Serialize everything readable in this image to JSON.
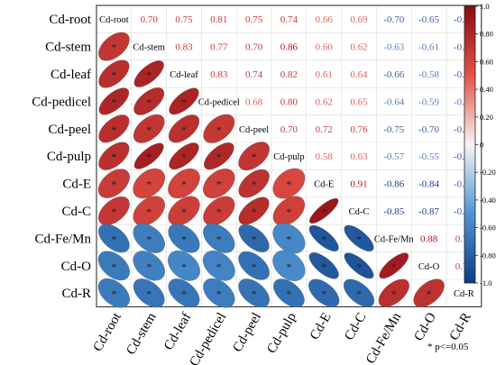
{
  "chart_data": {
    "type": "heatmap",
    "subtype": "correlation-matrix",
    "variables": [
      "Cd-root",
      "Cd-stem",
      "Cd-leaf",
      "Cd-pedicel",
      "Cd-peel",
      "Cd-pulp",
      "Cd-E",
      "Cd-C",
      "Cd-Fe/Mn",
      "Cd-O",
      "Cd-R"
    ],
    "matrix": [
      [
        1,
        0.7,
        0.75,
        0.81,
        0.75,
        0.74,
        0.66,
        0.69,
        -0.7,
        -0.65,
        -0.65
      ],
      [
        0.7,
        1,
        0.83,
        0.77,
        0.7,
        0.86,
        0.6,
        0.62,
        -0.63,
        -0.61,
        -0.68
      ],
      [
        0.75,
        0.83,
        1,
        0.83,
        0.74,
        0.82,
        0.61,
        0.64,
        -0.66,
        -0.58,
        -0.68
      ],
      [
        0.81,
        0.77,
        0.83,
        1,
        0.68,
        0.8,
        0.62,
        0.65,
        -0.64,
        -0.59,
        -0.64
      ],
      [
        0.75,
        0.7,
        0.74,
        0.68,
        1,
        0.7,
        0.72,
        0.76,
        -0.75,
        -0.7,
        -0.69
      ],
      [
        0.74,
        0.86,
        0.82,
        0.8,
        0.7,
        1,
        0.58,
        0.63,
        -0.57,
        -0.55,
        -0.7
      ],
      [
        0.66,
        0.6,
        0.61,
        0.62,
        0.72,
        0.58,
        1,
        0.91,
        -0.86,
        -0.84,
        -0.74
      ],
      [
        0.69,
        0.62,
        0.64,
        0.65,
        0.76,
        0.63,
        0.91,
        1,
        -0.85,
        -0.87,
        -0.75
      ],
      [
        -0.7,
        -0.63,
        -0.66,
        -0.64,
        -0.75,
        -0.57,
        -0.86,
        -0.85,
        1,
        0.88,
        0.74
      ],
      [
        -0.65,
        -0.61,
        -0.58,
        -0.59,
        -0.7,
        -0.55,
        -0.84,
        -0.87,
        0.88,
        1,
        0.72
      ],
      [
        -0.65,
        -0.68,
        -0.68,
        -0.64,
        -0.69,
        -0.7,
        -0.74,
        -0.75,
        0.74,
        0.72,
        1
      ]
    ],
    "significance_marker": "*",
    "significance_legend": "* p<=0.05",
    "lower_triangle": "ellipses",
    "upper_triangle": "values",
    "colorbar": {
      "ticks": [
        "1.0",
        "0.80",
        "0.60",
        "0.40",
        "0.20",
        "0",
        "-0.20",
        "-0.40",
        "-0.60",
        "-0.80",
        "-1.0"
      ],
      "range": [
        -1,
        1
      ],
      "colors": {
        "positive": "#8b0a14",
        "mid": "#f4f4f4",
        "negative": "#0b3d86"
      }
    }
  }
}
